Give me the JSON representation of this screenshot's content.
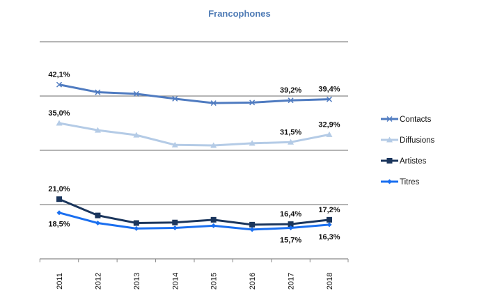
{
  "chart_data": {
    "type": "line",
    "title": "Francophones",
    "xlabel": "",
    "ylabel": "",
    "categories": [
      "2011",
      "2012",
      "2013",
      "2014",
      "2015",
      "2016",
      "2017",
      "2018"
    ],
    "ylim": [
      10,
      50
    ],
    "grid": true,
    "y_tick_labels_shown": false,
    "legend": "right",
    "series": [
      {
        "name": "Contacts",
        "color": "#4F7BC0",
        "marker": "x",
        "values": [
          42.1,
          40.7,
          40.4,
          39.5,
          38.7,
          38.8,
          39.2,
          39.4
        ],
        "labels": {
          "2011": "42,1%",
          "2017": "39,2%",
          "2018": "39,4%"
        },
        "label_pos": "above"
      },
      {
        "name": "Diffusions",
        "color": "#B4CBE6",
        "marker": "triangle",
        "values": [
          35.0,
          33.7,
          32.8,
          31.0,
          30.9,
          31.3,
          31.5,
          32.9
        ],
        "labels": {
          "2011": "35,0%",
          "2017": "31,5%",
          "2018": "32,9%"
        },
        "label_pos": "above"
      },
      {
        "name": "Artistes",
        "color": "#1B365D",
        "marker": "square",
        "values": [
          21.0,
          18.0,
          16.6,
          16.7,
          17.2,
          16.3,
          16.4,
          17.2
        ],
        "labels": {
          "2011": "21,0%",
          "2017": "16,4%",
          "2018": "17,2%"
        },
        "label_pos": "above"
      },
      {
        "name": "Titres",
        "color": "#1A6FF0",
        "marker": "diamond",
        "values": [
          18.5,
          16.6,
          15.6,
          15.7,
          16.1,
          15.4,
          15.7,
          16.3
        ],
        "labels": {
          "2011": "18,5%",
          "2017": "15,7%",
          "2018": "16,3%"
        },
        "label_pos": "below"
      }
    ]
  }
}
